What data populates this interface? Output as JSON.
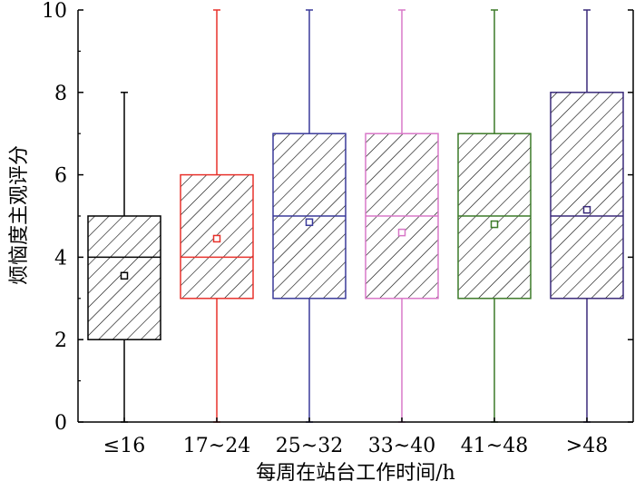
{
  "chart_data": {
    "type": "box",
    "xlabel": "每周在站台工作时间/h",
    "ylabel": "烦恼度主观评分",
    "ylim": [
      0,
      10
    ],
    "yticks": [
      0,
      2,
      4,
      6,
      8,
      10
    ],
    "grid": false,
    "pattern": "diagonal-hatch",
    "boxes": [
      {
        "category": "≤16",
        "min": 0,
        "q1": 2,
        "median": 4,
        "q3": 5,
        "max": 8,
        "mean": 3.55,
        "color": "#000000"
      },
      {
        "category": "17~24",
        "min": 0,
        "q1": 3,
        "median": 4,
        "q3": 6,
        "max": 10,
        "mean": 4.45,
        "color": "#e8322c"
      },
      {
        "category": "25~32",
        "min": 0,
        "q1": 3,
        "median": 5,
        "q3": 7,
        "max": 10,
        "mean": 4.85,
        "color": "#3a3a9a"
      },
      {
        "category": "33~40",
        "min": 0,
        "q1": 3,
        "median": 5,
        "q3": 7,
        "max": 10,
        "mean": 4.6,
        "color": "#d878c8"
      },
      {
        "category": "41~48",
        "min": 0,
        "q1": 3,
        "median": 5,
        "q3": 7,
        "max": 10,
        "mean": 4.8,
        "color": "#3c7a28"
      },
      {
        "category": ">48",
        "min": 0,
        "q1": 3,
        "median": 5,
        "q3": 8,
        "max": 10,
        "mean": 5.15,
        "color": "#3a2a7a"
      }
    ]
  }
}
